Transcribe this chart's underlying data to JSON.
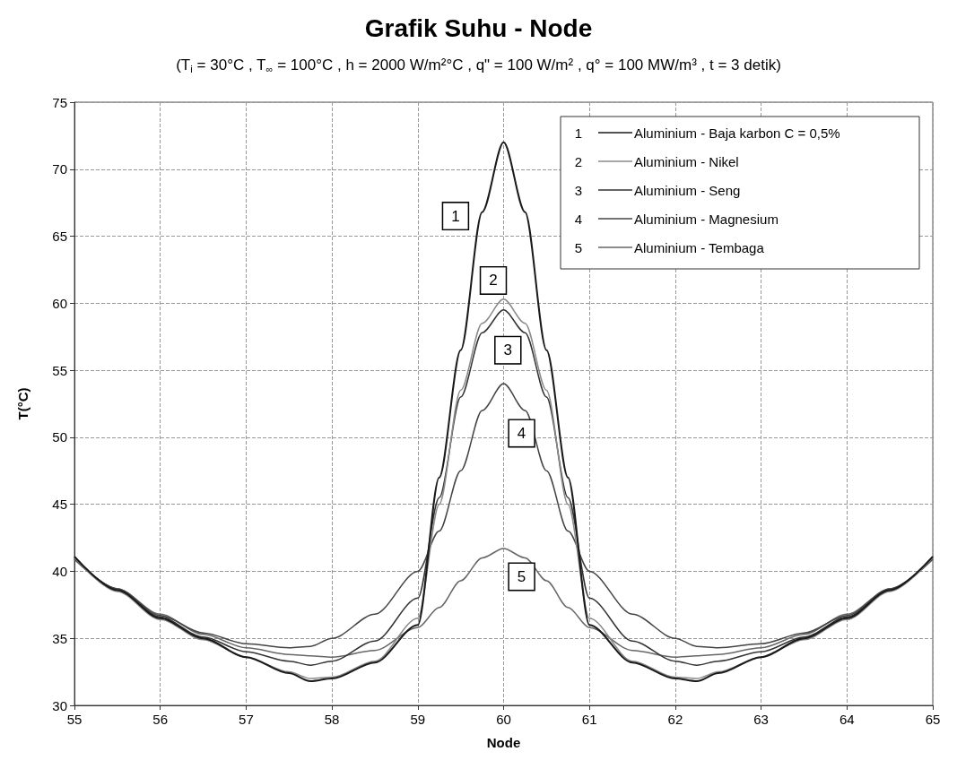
{
  "chart_data": {
    "type": "line",
    "title": "Grafik Suhu - Node",
    "subtitle": "(T$_{i}$ = 30°C , T$_{∞}$ = 100°C , h = 2000 W/m²°C , q\" = 100 W/m² , q° = 100 MW/m³ , t = 3 detik)",
    "xlabel": "Node",
    "ylabel": "T(°C)",
    "x": [
      55,
      55.5,
      56,
      56.5,
      57,
      57.5,
      57.75,
      58,
      58.5,
      59,
      59.25,
      59.5,
      59.75,
      60,
      60.25,
      60.5,
      60.75,
      61,
      61.5,
      62,
      62.25,
      62.5,
      63,
      63.5,
      64,
      64.5,
      65
    ],
    "series": [
      {
        "name": "Aluminium - Baja karbon C = 0,5%",
        "color": "#1a1a1a",
        "values": [
          41.1,
          38.6,
          36.5,
          35.0,
          33.6,
          32.4,
          31.8,
          32.0,
          33.2,
          36.0,
          47.0,
          56.5,
          66.8,
          72.0,
          66.8,
          56.5,
          47.0,
          36.0,
          33.2,
          32.0,
          31.8,
          32.4,
          33.6,
          35.0,
          36.5,
          38.6,
          41.1
        ]
      },
      {
        "name": "Aluminium - Nikel",
        "color": "#8a8a8a",
        "values": [
          41.0,
          38.5,
          36.4,
          34.9,
          33.6,
          32.5,
          32.0,
          32.1,
          33.3,
          36.5,
          45.0,
          53.5,
          58.5,
          60.3,
          58.5,
          53.5,
          45.0,
          36.5,
          33.3,
          32.1,
          32.0,
          32.5,
          33.6,
          34.9,
          36.4,
          38.5,
          41.0
        ]
      },
      {
        "name": "Aluminium - Seng",
        "color": "#333333",
        "values": [
          41.0,
          38.6,
          36.6,
          35.1,
          34.0,
          33.3,
          33.0,
          33.3,
          34.8,
          38.0,
          45.5,
          53.0,
          57.8,
          59.5,
          57.8,
          53.0,
          45.5,
          38.0,
          34.8,
          33.3,
          33.0,
          33.3,
          34.0,
          35.1,
          36.6,
          38.6,
          41.0
        ]
      },
      {
        "name": "Aluminium - Magnesium",
        "color": "#444444",
        "values": [
          40.9,
          38.7,
          36.7,
          35.4,
          34.6,
          34.3,
          34.4,
          35.0,
          36.8,
          40.0,
          43.0,
          47.5,
          52.0,
          54.0,
          52.0,
          47.5,
          43.0,
          40.0,
          36.8,
          35.0,
          34.4,
          34.3,
          34.6,
          35.4,
          36.7,
          38.7,
          40.9
        ]
      },
      {
        "name": "Aluminium - Tembaga",
        "color": "#666666",
        "values": [
          40.9,
          38.7,
          36.8,
          35.3,
          34.3,
          33.8,
          33.7,
          33.6,
          34.1,
          35.8,
          37.3,
          39.3,
          41.0,
          41.7,
          41.0,
          39.3,
          37.3,
          35.8,
          34.1,
          33.6,
          33.7,
          33.8,
          34.3,
          35.3,
          36.8,
          38.7,
          40.9
        ]
      }
    ],
    "annotations": [
      {
        "text": "1",
        "x": 59.44,
        "y": 66.5
      },
      {
        "text": "2",
        "x": 59.88,
        "y": 61.7
      },
      {
        "text": "3",
        "x": 60.05,
        "y": 56.5
      },
      {
        "text": "4",
        "x": 60.21,
        "y": 50.3
      },
      {
        "text": "5",
        "x": 60.21,
        "y": 39.6
      }
    ],
    "xlim": [
      55,
      65
    ],
    "xticks": [
      55,
      56,
      57,
      58,
      59,
      60,
      61,
      62,
      63,
      64,
      65
    ],
    "ylim": [
      30,
      75
    ],
    "yticks": [
      30,
      35,
      40,
      45,
      50,
      55,
      60,
      65,
      70,
      75
    ],
    "grid": true,
    "legend": "top right",
    "marker": "none",
    "line_style": "solid"
  }
}
